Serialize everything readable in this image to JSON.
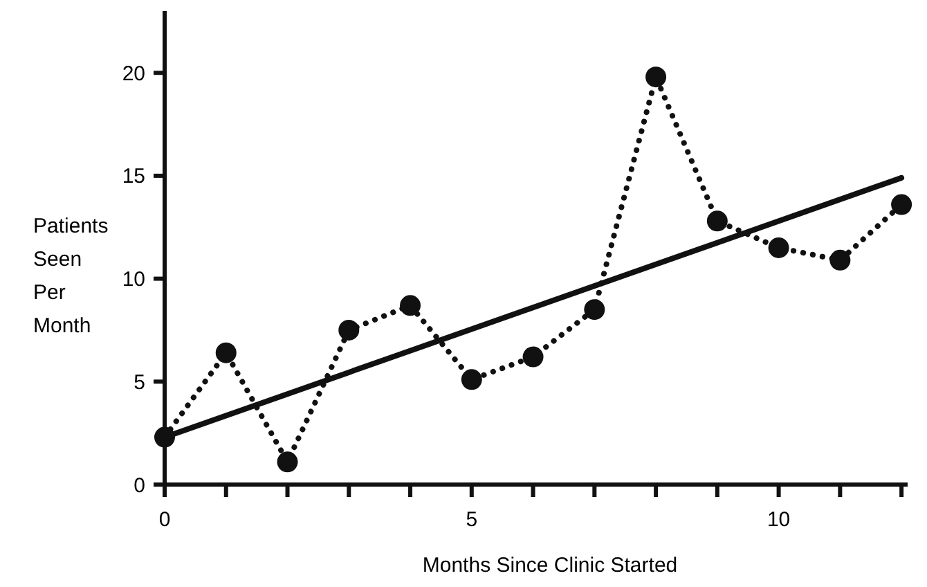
{
  "chart_data": {
    "type": "line",
    "xlabel": "Months Since Clinic Started",
    "ylabel": "Patients Seen Per Month",
    "x": [
      0,
      1,
      2,
      3,
      4,
      5,
      6,
      7,
      8,
      9,
      10,
      11,
      12
    ],
    "xlim": [
      0,
      12.1
    ],
    "ylim": [
      0,
      23
    ],
    "xticks": [
      0,
      {
        "value": 1,
        "label": null
      },
      {
        "value": 2,
        "label": null
      },
      {
        "value": 3,
        "label": null
      },
      {
        "value": 4,
        "label": null
      },
      5,
      {
        "value": 6,
        "label": null
      },
      {
        "value": 7,
        "label": null
      },
      {
        "value": 8,
        "label": null
      },
      {
        "value": 9,
        "label": null
      },
      10,
      {
        "value": 11,
        "label": null
      },
      {
        "value": 12,
        "label": null
      }
    ],
    "yticks": [
      0,
      5,
      10,
      15,
      20
    ],
    "grid": false,
    "series": [
      {
        "color": "#111111",
        "values": [
          2.3,
          6.4,
          1.1,
          7.5,
          8.7,
          5.1,
          6.2,
          8.5,
          19.8,
          12.8,
          11.5,
          10.9,
          13.6
        ],
        "marker": "circle",
        "line_style": "dotted"
      },
      {
        "type": "line",
        "color": "#111111",
        "x": [
          0,
          12
        ],
        "values": [
          2.3,
          14.9
        ],
        "marker": "none",
        "line_style": "solid"
      }
    ]
  }
}
